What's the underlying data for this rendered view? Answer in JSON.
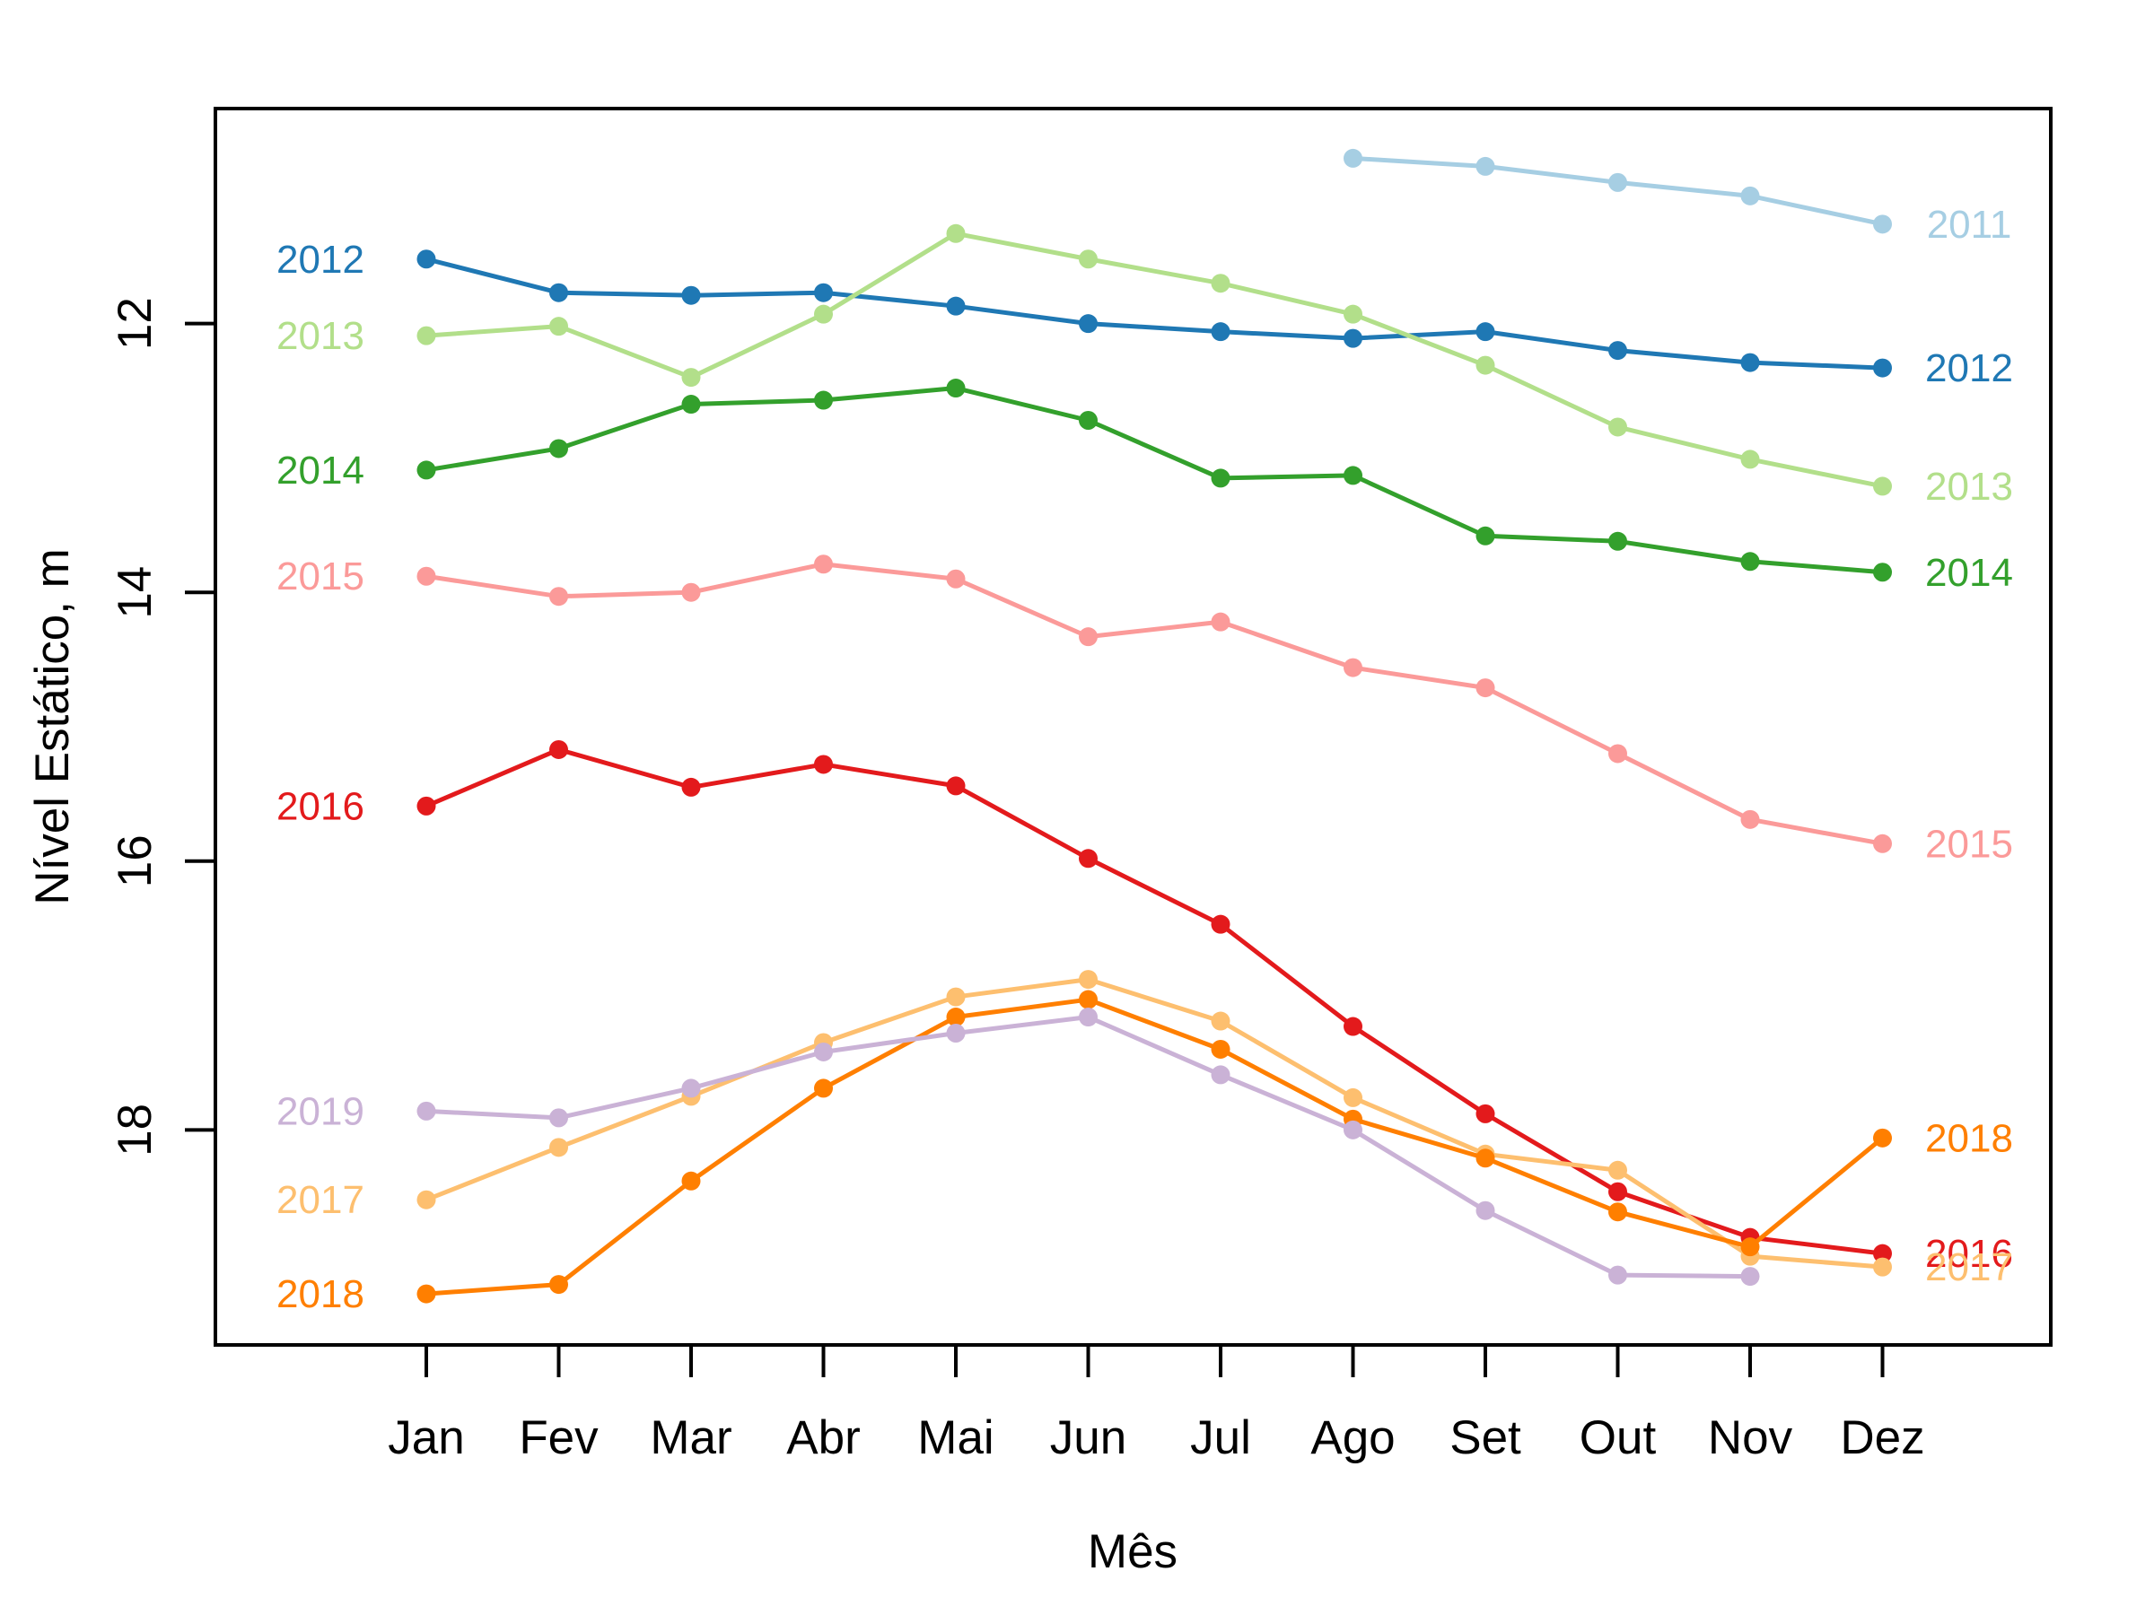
{
  "chart_data": {
    "type": "line",
    "title": "",
    "xlabel": "Mês",
    "ylabel": "Nível Estático, m",
    "x_categories": [
      "Jan",
      "Fev",
      "Mar",
      "Abr",
      "Mai",
      "Jun",
      "Jul",
      "Ago",
      "Set",
      "Out",
      "Nov",
      "Dez"
    ],
    "y_ticks": [
      12,
      14,
      16,
      18
    ],
    "ylim": [
      10.4,
      19.6
    ],
    "y_axis_direction": "values_increase_downward",
    "grid": false,
    "legend_position": "labels-at-line-ends",
    "series": [
      {
        "name": "2011",
        "color": "#a6cee3",
        "values": [
          null,
          null,
          null,
          null,
          null,
          null,
          null,
          10.77,
          10.83,
          10.95,
          11.05,
          11.26
        ]
      },
      {
        "name": "2012",
        "color": "#1f78b4",
        "values": [
          11.52,
          11.77,
          11.79,
          11.77,
          11.87,
          12.0,
          12.06,
          12.11,
          12.06,
          12.2,
          12.29,
          12.33
        ]
      },
      {
        "name": "2013",
        "color": "#b2df8a",
        "values": [
          12.09,
          12.02,
          12.4,
          11.93,
          11.33,
          11.52,
          11.7,
          11.93,
          12.31,
          12.77,
          13.01,
          13.21
        ]
      },
      {
        "name": "2014",
        "color": "#33a02c",
        "values": [
          13.09,
          12.93,
          12.6,
          12.57,
          12.48,
          12.72,
          13.15,
          13.13,
          13.58,
          13.62,
          13.77,
          13.85
        ]
      },
      {
        "name": "2015",
        "color": "#fb9a99",
        "values": [
          13.88,
          14.03,
          14.0,
          13.79,
          13.9,
          14.33,
          14.22,
          14.56,
          14.71,
          15.2,
          15.69,
          15.87
        ]
      },
      {
        "name": "2016",
        "color": "#e31a1c",
        "values": [
          15.59,
          15.17,
          15.45,
          15.28,
          15.44,
          15.98,
          16.47,
          17.23,
          17.88,
          18.46,
          18.8,
          18.92
        ]
      },
      {
        "name": "2017",
        "color": "#fdbf6f",
        "values": [
          18.52,
          18.13,
          17.75,
          17.35,
          17.01,
          16.88,
          17.19,
          17.76,
          18.18,
          18.3,
          18.94,
          19.02
        ]
      },
      {
        "name": "2018",
        "color": "#ff7f00",
        "values": [
          19.22,
          19.15,
          18.38,
          17.69,
          17.16,
          17.03,
          17.4,
          17.92,
          18.21,
          18.61,
          18.87,
          18.06
        ]
      },
      {
        "name": "2019",
        "color": "#cab2d6",
        "values": [
          17.86,
          17.91,
          17.69,
          17.42,
          17.28,
          17.16,
          17.59,
          18.0,
          18.6,
          19.08,
          19.09,
          null
        ]
      }
    ]
  }
}
